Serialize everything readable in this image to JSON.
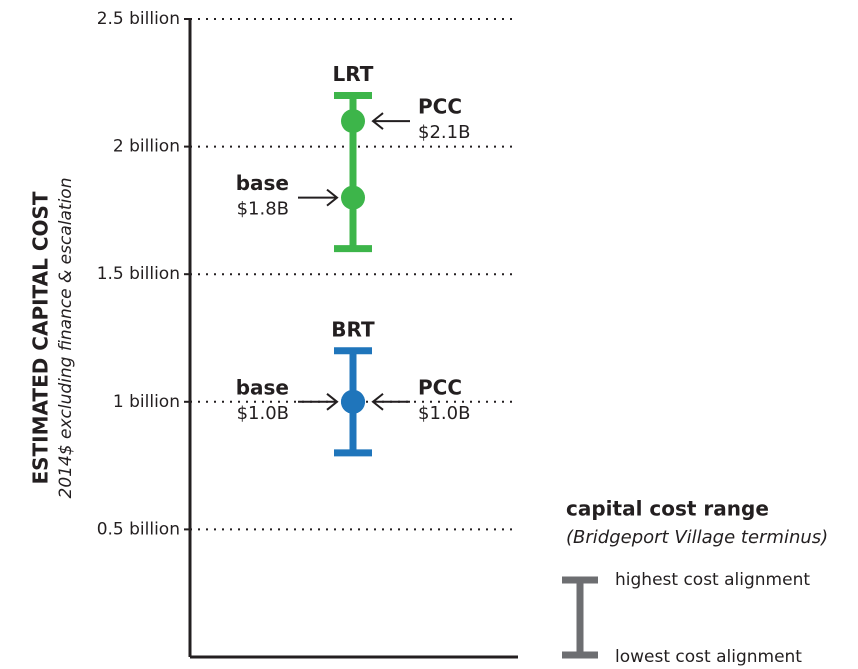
{
  "chart_data": {
    "type": "range",
    "y_label": "ESTIMATED CAPITAL COST",
    "y_sublabel": "2014$ excluding finance & escalation",
    "ylim": [
      0,
      2.5
    ],
    "yticks": [
      {
        "value": 0.5,
        "label": "0.5 billion"
      },
      {
        "value": 1,
        "label": "1 billion"
      },
      {
        "value": 1.5,
        "label": "1.5 billion"
      },
      {
        "value": 2,
        "label": "2 billion"
      },
      {
        "value": 2.5,
        "label": "2.5 billion"
      }
    ],
    "grid": true,
    "series": [
      {
        "name": "LRT",
        "color": "#3db54a",
        "range": [
          1.6,
          2.2
        ],
        "markers": {
          "names": [
            "base",
            "PCC"
          ],
          "values": [
            1.8,
            2.1
          ],
          "value_labels": [
            "$1.8B",
            "$2.1B"
          ]
        }
      },
      {
        "name": "BRT",
        "color": "#1f75bb",
        "range": [
          0.8,
          1.2
        ],
        "markers": {
          "names": [
            "base",
            "PCC"
          ],
          "values": [
            1.0,
            1.0
          ],
          "value_labels": [
            "$1.0B",
            "$1.0B"
          ]
        }
      }
    ],
    "legend": {
      "title": "capital cost range",
      "subtitle": "(Bridgeport Village terminus)",
      "high": "highest cost alignment",
      "low": "lowest cost alignment",
      "color": "#6d6e71"
    }
  }
}
